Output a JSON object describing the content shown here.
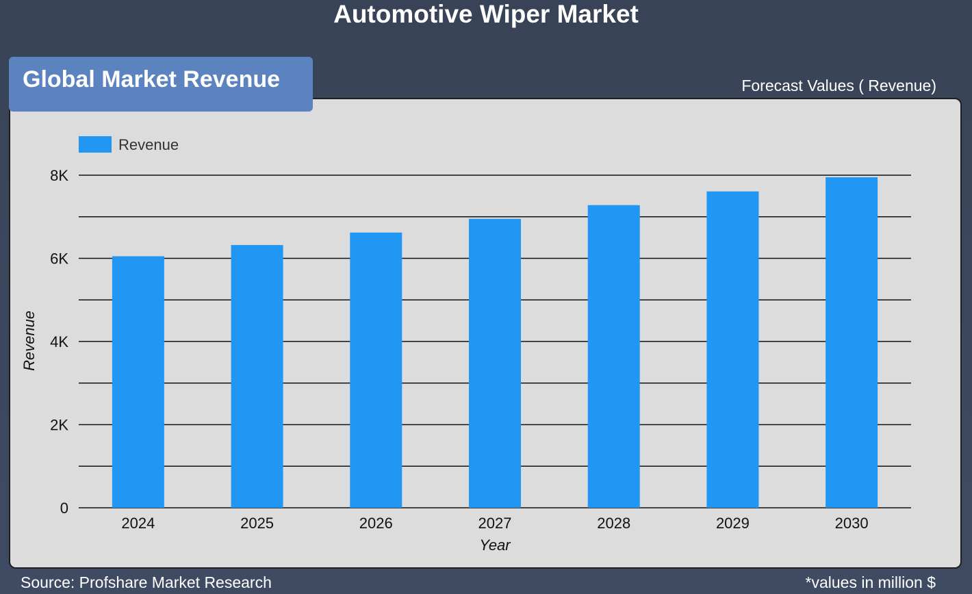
{
  "header": {
    "title": "Automotive Wiper Market"
  },
  "tab": {
    "label": "Global Market Revenue"
  },
  "forecast_label": "Forecast Values ( Revenue)",
  "footer": {
    "source": "Source: Profshare Market Research",
    "note": "*values in million $"
  },
  "colors": {
    "bar": "#2196f3",
    "panel": "#dcdcdc",
    "background": "#3b455b",
    "tab": "#5b83bf"
  },
  "chart_data": {
    "type": "bar",
    "categories": [
      "2024",
      "2025",
      "2026",
      "2027",
      "2028",
      "2029",
      "2030"
    ],
    "series": [
      {
        "name": "Revenue",
        "values": [
          6050,
          6320,
          6620,
          6950,
          7280,
          7610,
          7950
        ]
      }
    ],
    "xlabel": "Year",
    "ylabel": "Revenue",
    "ylim": [
      0,
      8000
    ],
    "yticks": [
      0,
      2000,
      4000,
      6000,
      8000
    ],
    "ytick_labels": [
      "0",
      "2K",
      "4K",
      "6K",
      "8K"
    ],
    "grid": true,
    "legend_position": "top-left"
  }
}
